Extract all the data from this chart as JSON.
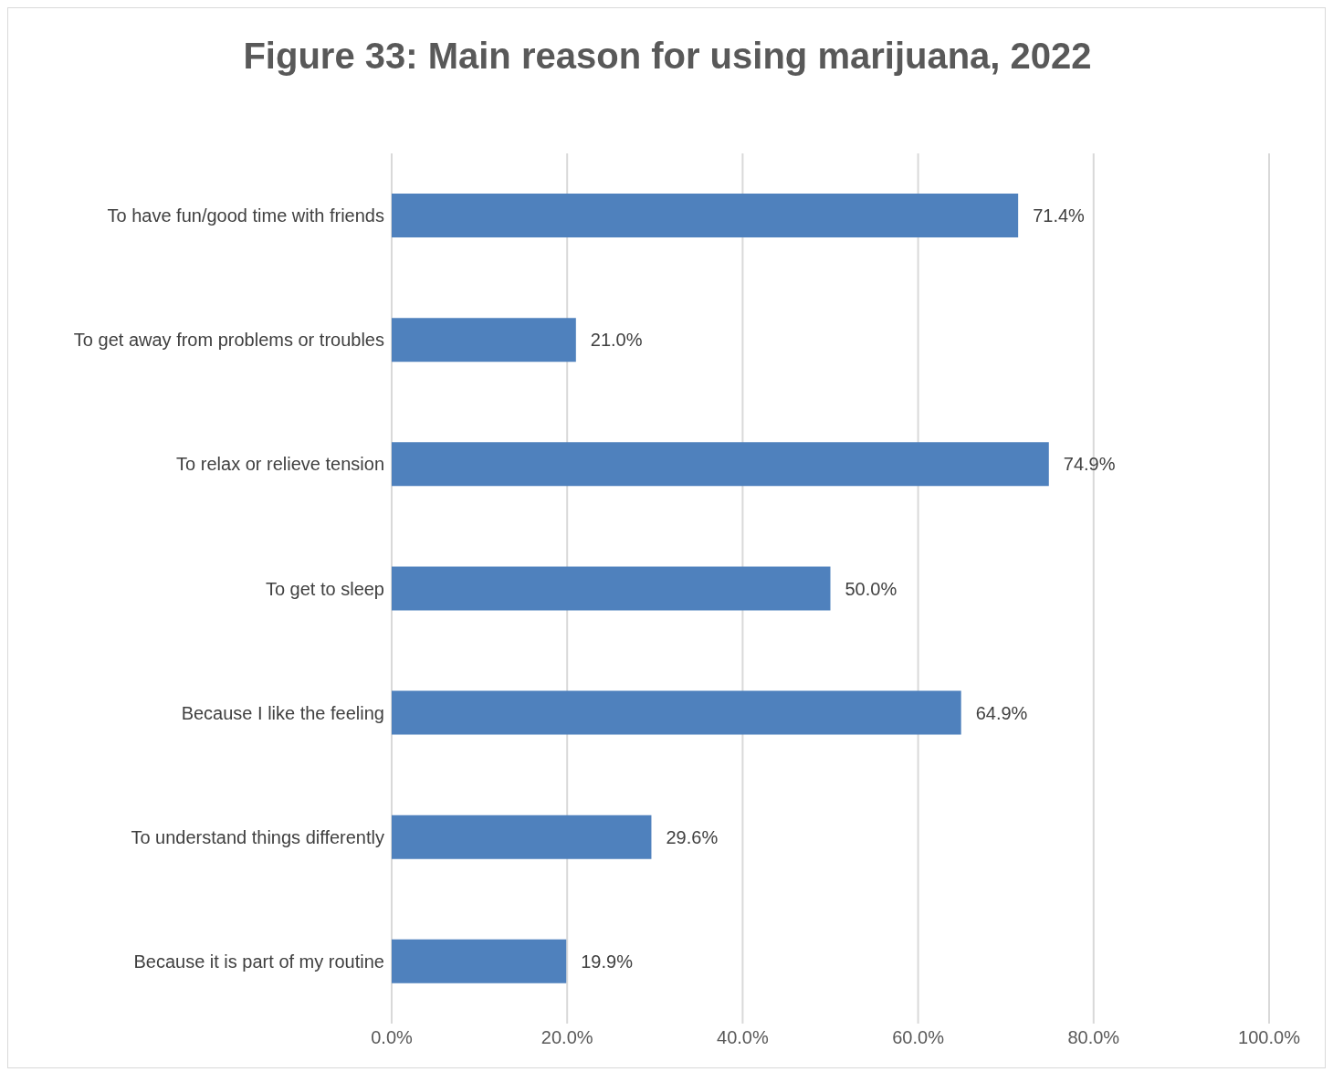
{
  "chart_data": {
    "type": "bar",
    "orientation": "horizontal",
    "title": "Figure 33: Main reason for using marijuana, 2022",
    "categories": [
      "To have fun/good time with friends",
      "To get away from problems or troubles",
      "To relax or relieve tension",
      "To get to sleep",
      "Because I like the feeling",
      "To understand things differently",
      "Because it is part of my routine"
    ],
    "values": [
      71.4,
      21.0,
      74.9,
      50.0,
      64.9,
      29.6,
      19.9
    ],
    "value_labels": [
      "71.4%",
      "21.0%",
      "74.9%",
      "50.0%",
      "64.9%",
      "29.6%",
      "19.9%"
    ],
    "color": "#4f81bd",
    "xlim": [
      0,
      100
    ],
    "xticks": [
      {
        "value": 0,
        "label": "0.0%"
      },
      {
        "value": 20,
        "label": "20.0%"
      },
      {
        "value": 40,
        "label": "40.0%"
      },
      {
        "value": 60,
        "label": "60.0%"
      },
      {
        "value": 80,
        "label": "80.0%"
      },
      {
        "value": 100,
        "label": "100.0%"
      }
    ],
    "grid": "x",
    "legend": false
  }
}
